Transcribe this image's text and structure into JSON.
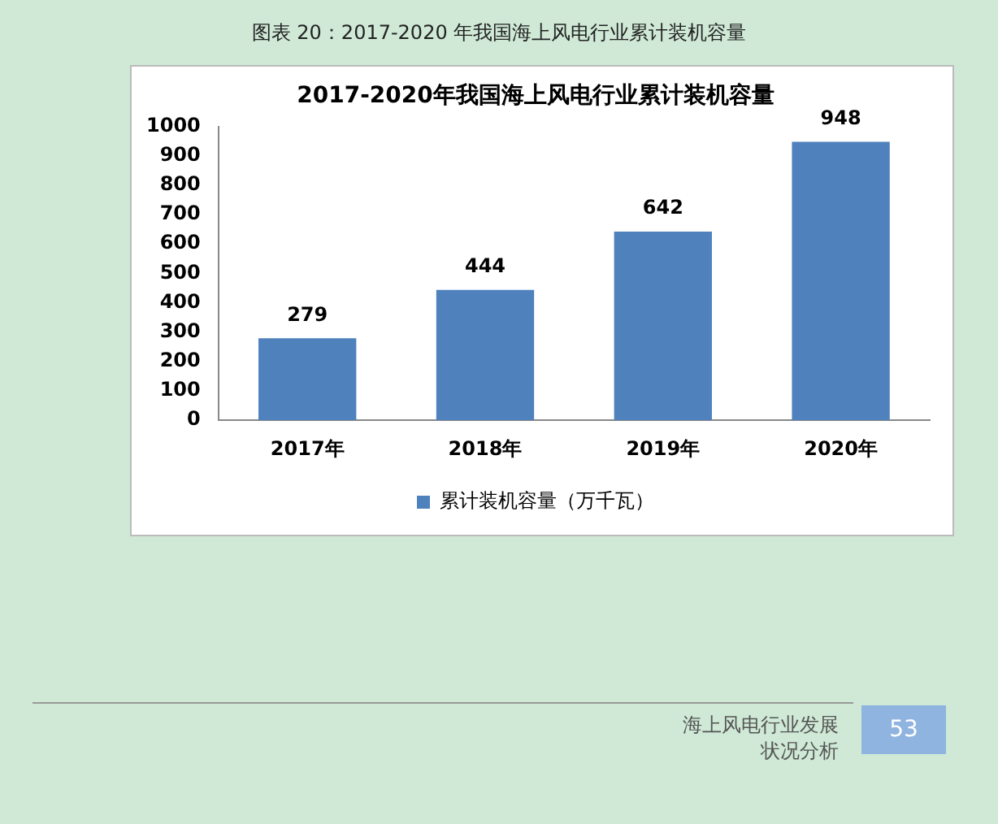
{
  "chart_data": {
    "type": "bar",
    "title": "2017-2020年我国海上风电行业累计装机容量",
    "categories": [
      "2017年",
      "2018年",
      "2019年",
      "2020年"
    ],
    "series": [
      {
        "name": "累计装机容量（万千瓦）",
        "color": "#4f81bd",
        "values": [
          279,
          444,
          642,
          948
        ]
      }
    ],
    "ylim": [
      0,
      1000
    ],
    "yticks": [
      0,
      100,
      200,
      300,
      400,
      500,
      600,
      700,
      800,
      900,
      1000
    ],
    "grid": false,
    "legend": "bottom",
    "data_labels": true,
    "annotations": [
      "图表  20：2017-2020 年我国海上风电行业累计装机容量",
      "海上风电行业发展状况分析",
      "53"
    ]
  }
}
